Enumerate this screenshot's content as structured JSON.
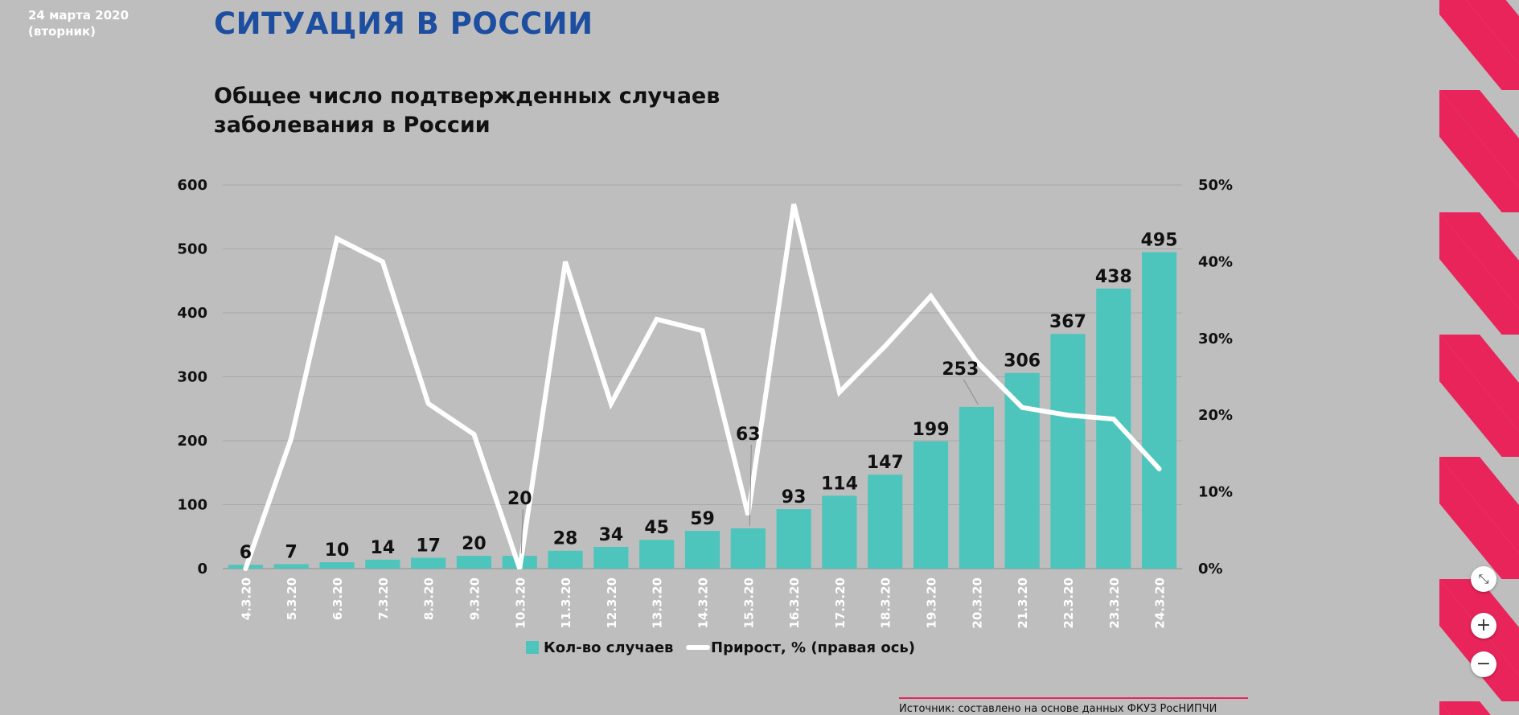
{
  "header": {
    "date_line1": "24 марта 2020",
    "date_line2": "(вторник)",
    "section_title": "СИТУАЦИЯ В РОССИИ"
  },
  "chart_data": {
    "type": "bar",
    "title_line1": "Общее число подтвержденных случаев",
    "title_line2": "заболевания в России",
    "categories": [
      "4.3.20",
      "5.3.20",
      "6.3.20",
      "7.3.20",
      "8.3.20",
      "9.3.20",
      "10.3.20",
      "11.3.20",
      "12.3.20",
      "13.3.20",
      "14.3.20",
      "15.3.20",
      "16.3.20",
      "17.3.20",
      "18.3.20",
      "19.3.20",
      "20.3.20",
      "21.3.20",
      "22.3.20",
      "23.3.20",
      "24.3.20"
    ],
    "series": [
      {
        "name": "Кол-во случаев",
        "type": "bar",
        "axis": "left",
        "color": "#4dc5bc",
        "values": [
          6,
          7,
          10,
          14,
          17,
          20,
          20,
          28,
          34,
          45,
          59,
          63,
          93,
          114,
          147,
          199,
          253,
          306,
          367,
          438,
          495
        ]
      },
      {
        "name": "Прирост, % (правая ось)",
        "type": "line",
        "axis": "right",
        "color": "#ffffff",
        "values": [
          0,
          17,
          43,
          40,
          21.5,
          17.5,
          0,
          40,
          21.5,
          32.5,
          31,
          7,
          47.5,
          23,
          29,
          35.5,
          27,
          21,
          20,
          19.5,
          13
        ]
      }
    ],
    "y_left_ticks": [
      "0",
      "100",
      "200",
      "300",
      "400",
      "500",
      "600"
    ],
    "y_right_ticks": [
      "0%",
      "10%",
      "20%",
      "30%",
      "40%",
      "50%"
    ],
    "ylim_left": [
      0,
      600
    ],
    "ylim_right": [
      0,
      50
    ],
    "grid": true,
    "legend_position": "bottom-center"
  },
  "source": "Источник: составлено на основе данных ФКУЗ РосНИПЧИ",
  "controls": {
    "fit_icon": "⤡",
    "zoom_in_label": "+",
    "zoom_out_label": "−"
  },
  "colors": {
    "accent_stripe": "#e8245a",
    "title_blue": "#1d4ea0"
  }
}
